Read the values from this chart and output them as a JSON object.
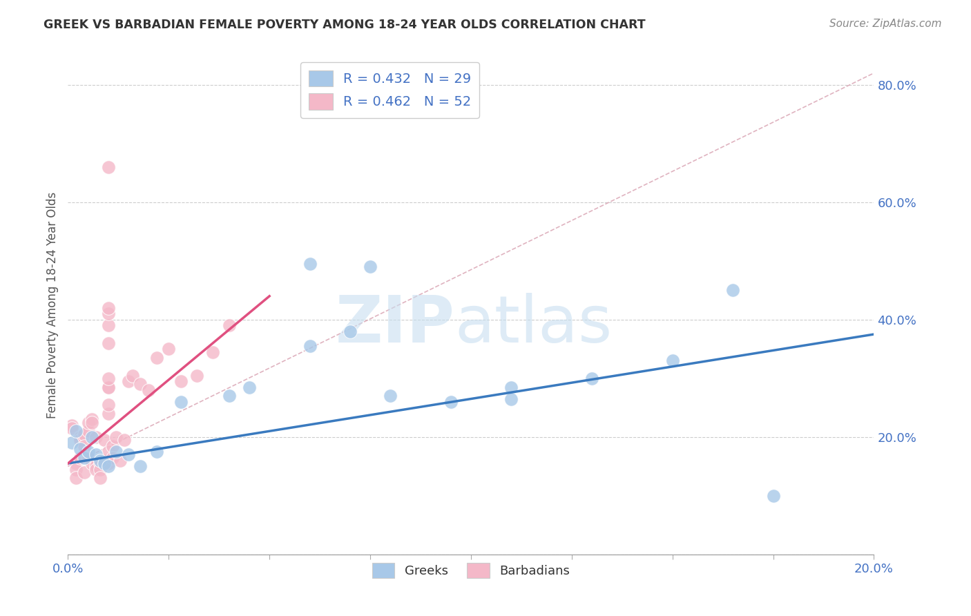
{
  "title": "GREEK VS BARBADIAN FEMALE POVERTY AMONG 18-24 YEAR OLDS CORRELATION CHART",
  "source": "Source: ZipAtlas.com",
  "ylabel": "Female Poverty Among 18-24 Year Olds",
  "xlim": [
    0.0,
    0.2
  ],
  "ylim": [
    0.0,
    0.85
  ],
  "greek_color": "#a8c8e8",
  "barbadian_color": "#f4b8c8",
  "greek_line_color": "#3a7abf",
  "barbadian_line_color": "#e05080",
  "ref_line_color": "#d8a0b0",
  "greek_R": 0.432,
  "greek_N": 29,
  "barbadian_R": 0.462,
  "barbadian_N": 52,
  "background_color": "#ffffff",
  "greek_x": [
    0.001,
    0.002,
    0.003,
    0.004,
    0.005,
    0.006,
    0.007,
    0.008,
    0.009,
    0.01,
    0.012,
    0.015,
    0.018,
    0.022,
    0.028,
    0.04,
    0.045,
    0.06,
    0.07,
    0.08,
    0.095,
    0.11,
    0.13,
    0.15,
    0.165,
    0.06,
    0.075,
    0.11,
    0.175
  ],
  "greek_y": [
    0.19,
    0.21,
    0.18,
    0.165,
    0.175,
    0.2,
    0.17,
    0.16,
    0.155,
    0.15,
    0.175,
    0.17,
    0.15,
    0.175,
    0.26,
    0.27,
    0.285,
    0.495,
    0.38,
    0.27,
    0.26,
    0.285,
    0.3,
    0.33,
    0.45,
    0.355,
    0.49,
    0.265,
    0.1
  ],
  "barbadian_x": [
    0.001,
    0.001,
    0.002,
    0.002,
    0.002,
    0.003,
    0.003,
    0.003,
    0.004,
    0.004,
    0.004,
    0.005,
    0.005,
    0.005,
    0.006,
    0.006,
    0.006,
    0.007,
    0.007,
    0.007,
    0.008,
    0.008,
    0.008,
    0.009,
    0.009,
    0.01,
    0.01,
    0.011,
    0.011,
    0.012,
    0.013,
    0.014,
    0.015,
    0.016,
    0.018,
    0.02,
    0.022,
    0.025,
    0.028,
    0.032,
    0.036,
    0.04,
    0.01,
    0.01,
    0.01,
    0.01,
    0.01,
    0.01,
    0.01,
    0.01,
    0.01,
    0.01
  ],
  "barbadian_y": [
    0.22,
    0.215,
    0.155,
    0.145,
    0.13,
    0.2,
    0.195,
    0.165,
    0.205,
    0.185,
    0.14,
    0.165,
    0.21,
    0.225,
    0.23,
    0.225,
    0.155,
    0.15,
    0.2,
    0.145,
    0.155,
    0.145,
    0.13,
    0.16,
    0.195,
    0.155,
    0.175,
    0.185,
    0.165,
    0.2,
    0.16,
    0.195,
    0.295,
    0.305,
    0.29,
    0.28,
    0.335,
    0.35,
    0.295,
    0.305,
    0.345,
    0.39,
    0.24,
    0.255,
    0.285,
    0.36,
    0.285,
    0.3,
    0.39,
    0.41,
    0.42,
    0.66
  ]
}
